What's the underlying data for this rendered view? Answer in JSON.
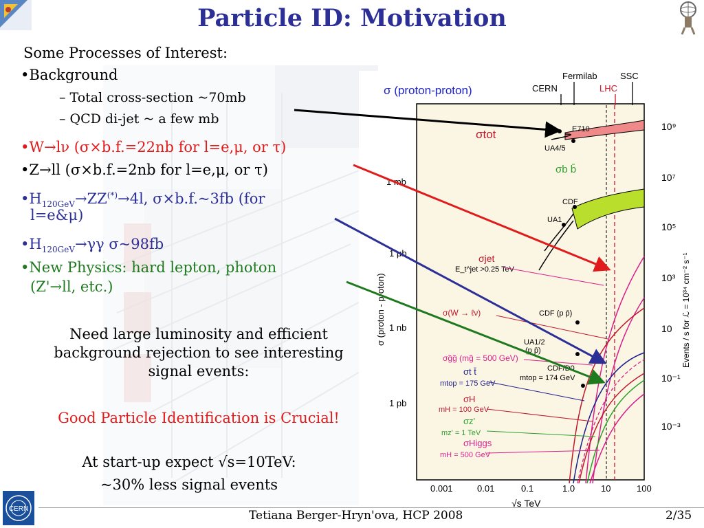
{
  "slide": {
    "title": "Particle ID: Motivation",
    "intro": "Some Processes of Interest:",
    "bullets": {
      "background": "•Background",
      "sub1": "–  Total cross-section ~70mb",
      "sub2": "–  QCD di-jet ~ a few mb",
      "w_line": "•W→lν (σ×b.f.=22nb for l=e,μ, or τ)",
      "z_line": "•Z→ll (σ×b.f.=2nb for l=e,μ, or τ)",
      "h_zz_pre": "•H",
      "h_zz_sub": "120GeV",
      "h_zz_mid": "→ZZ",
      "h_zz_sup": "(*)",
      "h_zz_post": "→4l, σ×b.f.~3fb (for",
      "h_zz_cont": "l=e&μ)",
      "h_gg_pre": "•H",
      "h_gg_sub": "120GeV",
      "h_gg_post": "→γγ  σ~98fb",
      "newphys_1": "•New Physics: hard lepton, photon",
      "newphys_2": "(Z'→ll, etc.)"
    },
    "para1": [
      "Need large luminosity and efficient",
      "background rejection to see interesting",
      "signal events:"
    ],
    "crucial": "Good Particle Identification is Crucial!",
    "startup": [
      "At start-up expect √s=10TeV:",
      "~30% less signal events"
    ],
    "footer": {
      "author": "Tetiana Berger-Hryn'ova, HCP 2008",
      "page": "2/35"
    }
  },
  "colors": {
    "title": "#2b2f96",
    "red": "#e01b1b",
    "blue": "#2b2f96",
    "green": "#1f7a1f"
  },
  "plot": {
    "header": "σ (proton-proton)",
    "machines": [
      "Fermilab",
      "SSC",
      "CERN",
      "LHC"
    ],
    "y_left_label": "σ (proton - proton)",
    "y_right_label": "Events / s  for ℒ = 10³⁴ cm⁻² s⁻¹",
    "y_left_ticks": [
      "1 mb",
      "1 μb",
      "1 nb",
      "1 pb"
    ],
    "y_right_ticks": [
      "10⁹",
      "10⁷",
      "10⁵",
      "10³",
      "10",
      "10⁻¹",
      "10⁻³"
    ],
    "x_ticks": [
      "0.001",
      "0.01",
      "0.1",
      "1.0",
      "10",
      "100"
    ],
    "x_label": "√s  TeV",
    "labels": {
      "sigma_tot": "σtot",
      "e710": "E710",
      "ua45": "UA4/5",
      "sigma_bb": "σb b̄",
      "cdf": "CDF",
      "ua1": "UA1",
      "sigma_jet": "σjet",
      "jet_cut": "E_t^jet >0.25 TeV",
      "sigma_w": "σ(W → ℓν)",
      "cdf_pp": "CDF (p p̄)",
      "ua12": "UA1/2",
      "pp": "(p p̄)",
      "sigma_gg": "σg̃g̃ (mg̃ = 500 GeV)",
      "sigma_tt": "σt t̄",
      "mtop1": "mtop = 175 GeV",
      "cdf_d0": "CDF/D0",
      "mtop2": "mtop = 174 GeV",
      "sigma_h": "σH",
      "mh100": "mH = 100 GeV",
      "sigma_z": "σz'",
      "mz1": "mz' = 1 TeV",
      "sigma_higgs": "σHiggs",
      "mh500": "mH = 500 GeV"
    }
  }
}
